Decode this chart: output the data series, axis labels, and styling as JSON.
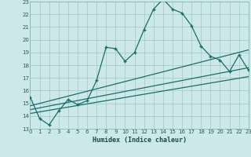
{
  "xlabel": "Humidex (Indice chaleur)",
  "bg_color": "#cce8e8",
  "grid_color": "#aacccc",
  "line_color": "#1a6e6a",
  "xmin": 0,
  "xmax": 23,
  "ymin": 13,
  "ymax": 23,
  "series1_x": [
    0,
    1,
    2,
    3,
    4,
    5,
    6,
    7,
    8,
    9,
    10,
    11,
    12,
    13,
    14,
    15,
    16,
    17,
    18,
    19,
    20,
    21,
    22,
    23
  ],
  "series1_y": [
    15.5,
    13.8,
    13.3,
    14.4,
    15.3,
    14.9,
    15.2,
    16.8,
    19.4,
    19.3,
    18.3,
    19.0,
    20.8,
    22.4,
    23.2,
    22.4,
    22.1,
    21.1,
    19.5,
    18.7,
    18.4,
    17.5,
    18.8,
    17.6
  ],
  "series2_x": [
    0,
    23
  ],
  "series2_y": [
    14.8,
    19.2
  ],
  "series3_x": [
    0,
    23
  ],
  "series3_y": [
    14.5,
    17.8
  ],
  "series4_x": [
    0,
    23
  ],
  "series4_y": [
    14.2,
    17.1
  ],
  "yticks": [
    13,
    14,
    15,
    16,
    17,
    18,
    19,
    20,
    21,
    22,
    23
  ],
  "xticks": [
    0,
    1,
    2,
    3,
    4,
    5,
    6,
    7,
    8,
    9,
    10,
    11,
    12,
    13,
    14,
    15,
    16,
    17,
    18,
    19,
    20,
    21,
    22,
    23
  ]
}
